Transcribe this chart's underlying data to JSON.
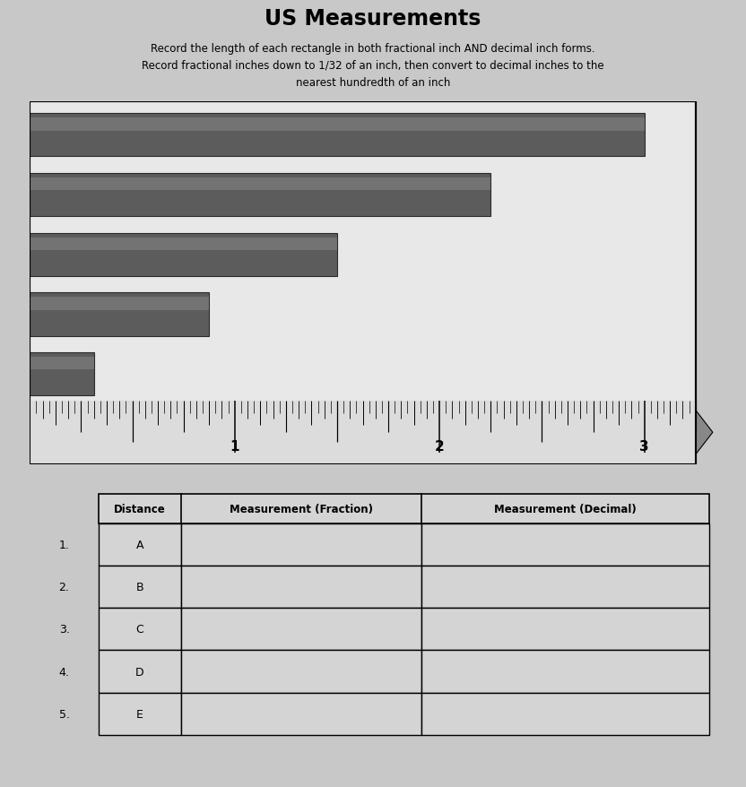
{
  "title": "US Measurements",
  "subtitle_lines": [
    "Record the length of each rectangle in both fractional inch AND decimal inch forms.",
    "Record fractional inches down to 1/32 of an inch, then convert to decimal inches to the",
    "nearest hundredth of an inch"
  ],
  "page_bg": "#c8c8c8",
  "chart_bg": "#d4d4d4",
  "bar_color": "#5c5c5c",
  "bar_color2": "#6e6e6e",
  "ruler_bg": "#e0e0e0",
  "bar_widths_inches": [
    3.0,
    2.25,
    1.5,
    0.875,
    0.3125
  ],
  "ruler_total_inches": 3.25,
  "tick_major": [
    1,
    2,
    3
  ],
  "table_headers": [
    "Distance",
    "Measurement (Fraction)",
    "Measurement (Decimal)"
  ],
  "table_rows": [
    [
      "A",
      "",
      ""
    ],
    [
      "B",
      "",
      ""
    ],
    [
      "C",
      "",
      ""
    ],
    [
      "D",
      "",
      ""
    ],
    [
      "E",
      "",
      ""
    ]
  ],
  "row_labels": [
    "1.",
    "2.",
    "3.",
    "4.",
    "5."
  ]
}
